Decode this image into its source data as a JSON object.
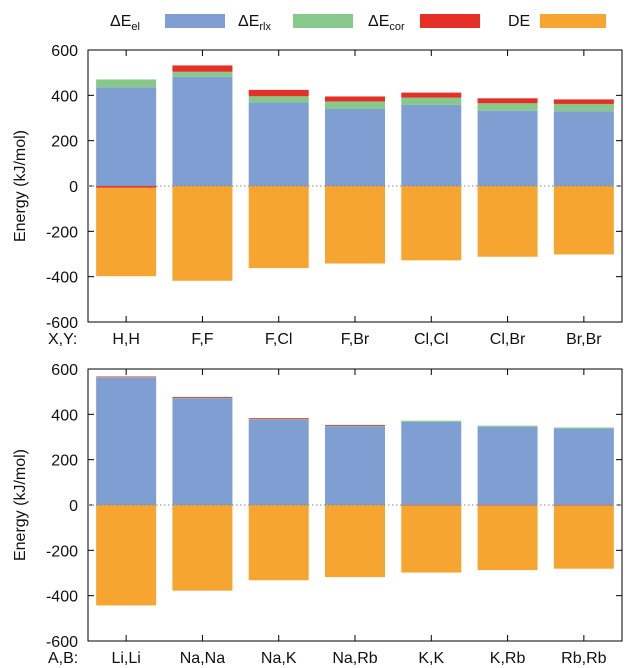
{
  "legend": {
    "entries": [
      {
        "label_main": "ΔE",
        "label_sub": "el",
        "color": "#7f9fd3"
      },
      {
        "label_main": "ΔE",
        "label_sub": "rlx",
        "color": "#86c98a"
      },
      {
        "label_main": "ΔE",
        "label_sub": "cor",
        "color": "#e53027"
      },
      {
        "label_main": "DE",
        "label_sub": "",
        "color": "#f7a531"
      }
    ]
  },
  "chart_data": [
    {
      "type": "bar",
      "stacked": true,
      "ylabel": "Energy (kJ/mol)",
      "ylim": [
        -600,
        600
      ],
      "yticks": [
        -600,
        -400,
        -200,
        0,
        200,
        400,
        600
      ],
      "category_prefix": "X,Y:",
      "categories": [
        "H,H",
        "F,F",
        "F,Cl",
        "F,Br",
        "Cl,Cl",
        "Cl,Br",
        "Br,Br"
      ],
      "series": [
        {
          "name": "ΔE_el",
          "color": "#7f9fd3",
          "values": [
            435,
            482,
            368,
            340,
            358,
            332,
            330
          ]
        },
        {
          "name": "ΔE_rlx",
          "color": "#86c98a",
          "values": [
            35,
            22,
            28,
            33,
            32,
            33,
            32
          ]
        },
        {
          "name": "ΔE_cor",
          "color": "#e53027",
          "values": [
            -8,
            28,
            28,
            22,
            22,
            22,
            20
          ]
        },
        {
          "name": "DE",
          "color": "#f7a531",
          "values": [
            -390,
            -418,
            -362,
            -342,
            -328,
            -312,
            -302
          ]
        }
      ]
    },
    {
      "type": "bar",
      "stacked": true,
      "ylabel": "Energy (kJ/mol)",
      "ylim": [
        -600,
        600
      ],
      "yticks": [
        -600,
        -400,
        -200,
        0,
        200,
        400,
        600
      ],
      "category_prefix": "A,B:",
      "categories": [
        "Li,Li",
        "Na,Na",
        "Na,K",
        "Na,Rb",
        "K,K",
        "K,Rb",
        "Rb,Rb"
      ],
      "series": [
        {
          "name": "ΔE_el",
          "color": "#7f9fd3",
          "values": [
            562,
            470,
            377,
            347,
            367,
            345,
            337
          ]
        },
        {
          "name": "ΔE_rlx",
          "color": "#86c98a",
          "values": [
            2,
            2,
            2,
            2,
            5,
            5,
            5
          ]
        },
        {
          "name": "ΔE_cor",
          "color": "#e53027",
          "values": [
            3,
            4,
            4,
            4,
            -2,
            -3,
            -3
          ]
        },
        {
          "name": "DE",
          "color": "#f7a531",
          "values": [
            -443,
            -378,
            -332,
            -318,
            -296,
            -284,
            -278
          ]
        }
      ]
    }
  ]
}
